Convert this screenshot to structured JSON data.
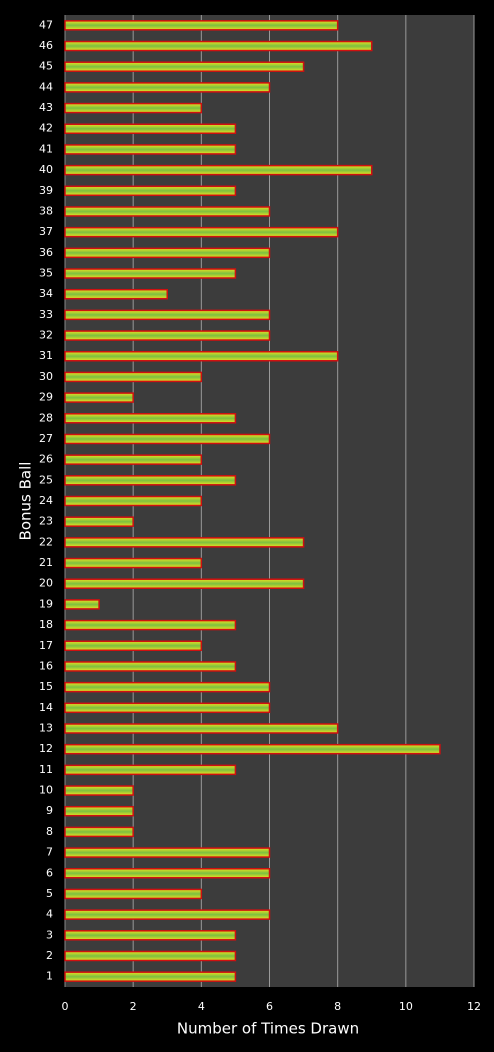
{
  "chart_data": {
    "type": "bar",
    "orientation": "horizontal",
    "x_label": "Number of Times Drawn",
    "y_label": "Bonus Ball",
    "categories": [
      "1",
      "2",
      "3",
      "4",
      "5",
      "6",
      "7",
      "8",
      "9",
      "10",
      "11",
      "12",
      "13",
      "14",
      "15",
      "16",
      "17",
      "18",
      "19",
      "20",
      "21",
      "22",
      "23",
      "24",
      "25",
      "26",
      "27",
      "28",
      "29",
      "30",
      "31",
      "32",
      "33",
      "34",
      "35",
      "36",
      "37",
      "38",
      "39",
      "40",
      "41",
      "42",
      "43",
      "44",
      "45",
      "46",
      "47"
    ],
    "values": [
      5,
      5,
      5,
      6,
      4,
      6,
      6,
      2,
      2,
      2,
      5,
      11,
      8,
      6,
      6,
      5,
      4,
      5,
      1,
      7,
      4,
      7,
      2,
      4,
      5,
      4,
      6,
      5,
      2,
      4,
      8,
      6,
      6,
      3,
      5,
      6,
      8,
      6,
      5,
      9,
      5,
      5,
      4,
      6,
      7,
      9,
      8
    ],
    "color": "#c8d820",
    "xlim": [
      0,
      12
    ],
    "xticks": [
      0,
      2,
      4,
      6,
      8,
      10,
      12
    ],
    "grid": true,
    "plot_background": "#3c3c3c"
  }
}
